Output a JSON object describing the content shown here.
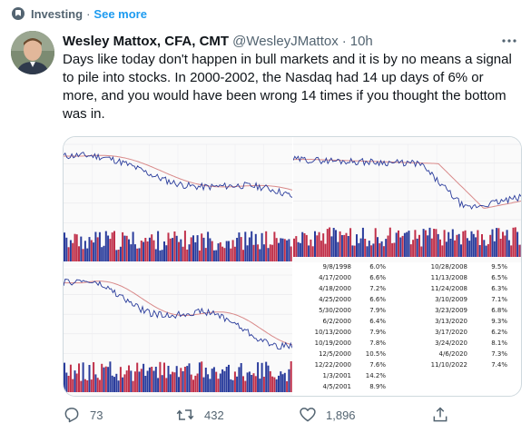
{
  "topic": {
    "label": "Investing",
    "separator": "·",
    "see_more": "See more",
    "icon": "topic-icon"
  },
  "tweet": {
    "author_name": "Wesley Mattox, CFA, CMT",
    "handle": "@WesleyJMattox",
    "separator": "·",
    "time": "10h",
    "text": "Days like today don't happen in bull markets and it is by no means a signal to pile into stocks. In 2000-2002, the Nasdaq had 14 up days of 6% or more, and you would have been wrong 14 times if you thought the bottom was in."
  },
  "media": {
    "table_rows": [
      {
        "date1": "9/8/1998",
        "pct1": "6.0%",
        "date2": "10/28/2008",
        "pct2": "9.5%"
      },
      {
        "date1": "4/17/2000",
        "pct1": "6.6%",
        "date2": "11/13/2008",
        "pct2": "6.5%"
      },
      {
        "date1": "4/18/2000",
        "pct1": "7.2%",
        "date2": "11/24/2008",
        "pct2": "6.3%"
      },
      {
        "date1": "4/25/2000",
        "pct1": "6.6%",
        "date2": "3/10/2009",
        "pct2": "7.1%"
      },
      {
        "date1": "5/30/2000",
        "pct1": "7.9%",
        "date2": "3/23/2009",
        "pct2": "6.8%"
      },
      {
        "date1": "6/2/2000",
        "pct1": "6.4%",
        "date2": "3/13/2020",
        "pct2": "9.3%"
      },
      {
        "date1": "10/13/2000",
        "pct1": "7.9%",
        "date2": "3/17/2020",
        "pct2": "6.2%"
      },
      {
        "date1": "10/19/2000",
        "pct1": "7.8%",
        "date2": "3/24/2020",
        "pct2": "8.1%"
      },
      {
        "date1": "12/5/2000",
        "pct1": "10.5%",
        "date2": "4/6/2020",
        "pct2": "7.3%"
      },
      {
        "date1": "12/22/2000",
        "pct1": "7.6%",
        "date2": "11/10/2022",
        "pct2": "7.4%"
      },
      {
        "date1": "1/3/2001",
        "pct1": "14.2%",
        "date2": "",
        "pct2": ""
      },
      {
        "date1": "4/5/2001",
        "pct1": "8.9%",
        "date2": "",
        "pct2": ""
      }
    ]
  },
  "actions": {
    "replies": "73",
    "retweets": "432",
    "likes": "1,896",
    "reply_icon": "reply-icon",
    "retweet_icon": "retweet-icon",
    "like_icon": "heart-icon",
    "share_icon": "share-icon"
  },
  "colors": {
    "accent": "#1d9bf0",
    "secondary_text": "#536471",
    "border": "#cfd9de",
    "volume_red": "#c0304a",
    "volume_blue": "#2a3c9c",
    "price_line": "#2a3c9c",
    "moving_average": "#d98a8a"
  }
}
